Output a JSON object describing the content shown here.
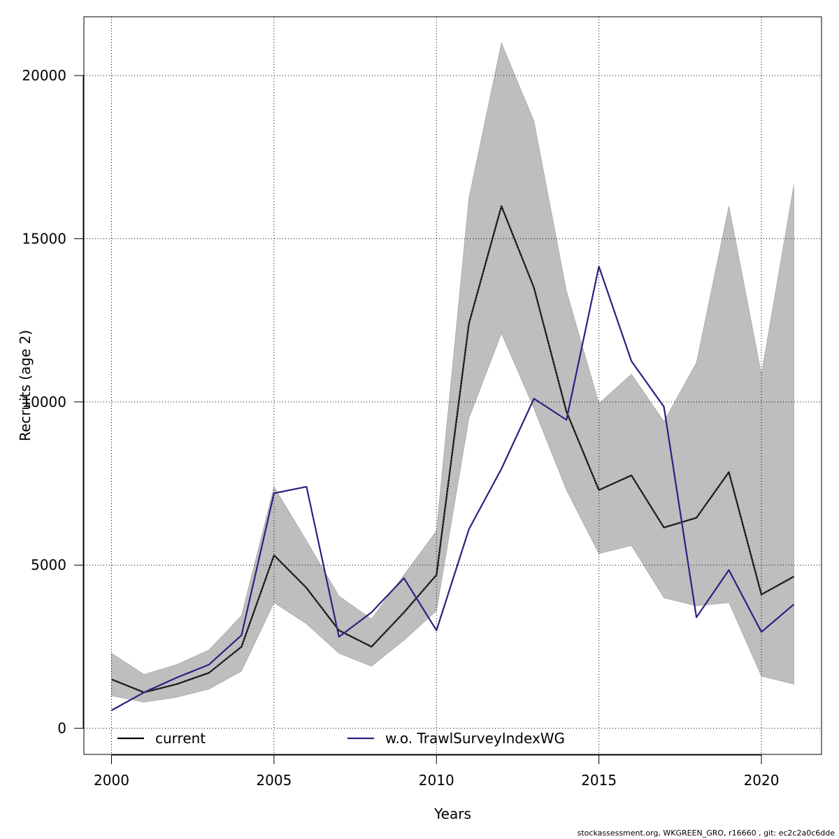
{
  "chart_data": {
    "type": "line",
    "title": "",
    "xlabel": "Years",
    "ylabel": "Recruits (age 2)",
    "xlim": [
      1999.15,
      2021.85
    ],
    "ylim": [
      -800,
      21800
    ],
    "x_ticks": [
      2000,
      2005,
      2010,
      2015,
      2020
    ],
    "y_ticks": [
      0,
      5000,
      10000,
      15000,
      20000
    ],
    "grid": true,
    "legend_position": "bottom",
    "x": [
      2000,
      2001,
      2002,
      2003,
      2004,
      2005,
      2006,
      2007,
      2008,
      2009,
      2010,
      2011,
      2012,
      2013,
      2014,
      2015,
      2016,
      2017,
      2018,
      2019,
      2020,
      2021
    ],
    "series": [
      {
        "name": "current",
        "color": "#000000",
        "style": "solid",
        "values": [
          1500,
          1100,
          1350,
          1700,
          2500,
          5300,
          4300,
          3000,
          2500,
          3550,
          4700,
          12400,
          16000,
          13500,
          9700,
          7300,
          7750,
          6150,
          6450,
          7850,
          4100,
          4650
        ]
      },
      {
        "name": "w.o. TrawlSurveyIndexWG",
        "color": "#2b2080",
        "style": "solid",
        "values": [
          550,
          1100,
          1550,
          1950,
          2850,
          7200,
          7400,
          2800,
          3550,
          4600,
          3000,
          6100,
          7950,
          10100,
          9450,
          14150,
          11250,
          9850,
          3400,
          4850,
          2950,
          3800
        ]
      }
    ],
    "band": {
      "color": "#bebebe",
      "lower": [
        1000,
        800,
        950,
        1200,
        1750,
        3850,
        3200,
        2300,
        1900,
        2700,
        3600,
        9500,
        12100,
        9800,
        7300,
        5350,
        5600,
        4000,
        3750,
        3850,
        1600,
        1350
      ],
      "upper": [
        2300,
        1650,
        1950,
        2400,
        3450,
        7400,
        5750,
        4050,
        3350,
        4700,
        6050,
        16250,
        21000,
        18600,
        13400,
        9950,
        10850,
        9400,
        11200,
        16000,
        10850,
        16650
      ]
    }
  },
  "footer": "stockassessment.org, WKGREEN_GRO, r16660 , git: ec2c2a0c6dde"
}
